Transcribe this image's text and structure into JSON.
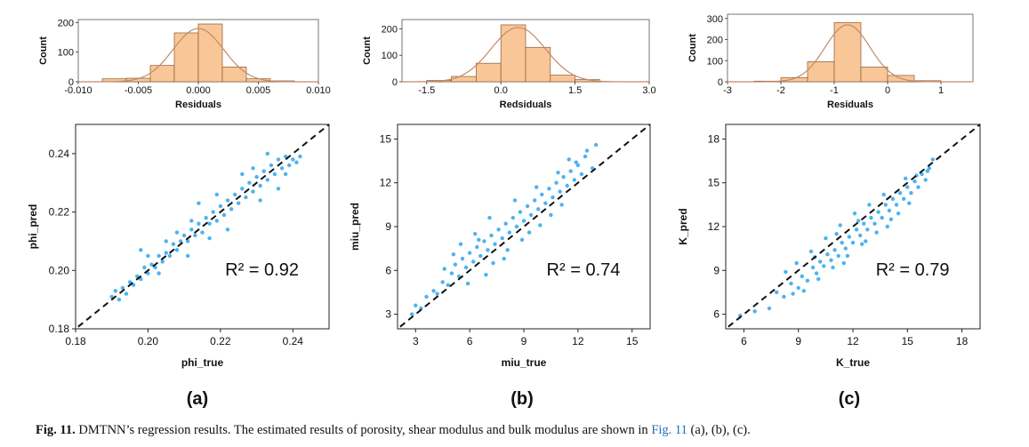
{
  "caption": {
    "label": "Fig. 11.",
    "text_before": "DMTNN’s regression results. The estimated results of porosity, shear modulus and bulk modulus are shown in",
    "link": "Fig. 11",
    "text_after": "(a), (b), (c)."
  },
  "colors": {
    "bar_fill": "#f9c697",
    "bar_stroke": "#8a5a2e",
    "curve": "#c4896a",
    "point": "#4db2f0",
    "identity": "#111111"
  },
  "chart_data": [
    {
      "panel": "a",
      "panel_label": "(a)",
      "histogram": {
        "type": "bar",
        "xlabel": "Residuals",
        "ylabel": "Count",
        "xlim": [
          -0.01,
          0.01
        ],
        "ylim": [
          0,
          210
        ],
        "xticks": [
          -0.01,
          -0.005,
          0.0,
          0.005,
          0.01
        ],
        "xtick_labels": [
          "-0.010",
          "-0.005",
          "0.000",
          "0.005",
          "0.010"
        ],
        "yticks": [
          0,
          100,
          200
        ],
        "bins": [
          [
            -0.008,
            -0.006,
            10
          ],
          [
            -0.006,
            -0.004,
            12
          ],
          [
            -0.004,
            -0.002,
            55
          ],
          [
            -0.002,
            0.0,
            165
          ],
          [
            0.0,
            0.002,
            195
          ],
          [
            0.002,
            0.004,
            50
          ],
          [
            0.004,
            0.006,
            10
          ],
          [
            0.006,
            0.008,
            3
          ]
        ],
        "normal_fit": {
          "mean": 0.0,
          "sd": 0.0021,
          "peak": 180
        }
      },
      "scatter": {
        "type": "scatter",
        "xlabel": "phi_true",
        "ylabel": "phi_pred",
        "xlim": [
          0.18,
          0.25
        ],
        "ylim": [
          0.18,
          0.25
        ],
        "xticks": [
          0.18,
          0.2,
          0.22,
          0.24
        ],
        "xtick_labels": [
          "0.18",
          "0.20",
          "0.22",
          "0.24"
        ],
        "yticks": [
          0.18,
          0.2,
          0.22,
          0.24
        ],
        "ytick_labels": [
          "0.18",
          "0.20",
          "0.22",
          "0.24"
        ],
        "r2_text": "R² = 0.92",
        "points": [
          [
            0.19,
            0.191
          ],
          [
            0.191,
            0.193
          ],
          [
            0.192,
            0.19
          ],
          [
            0.193,
            0.194
          ],
          [
            0.194,
            0.192
          ],
          [
            0.195,
            0.196
          ],
          [
            0.196,
            0.195
          ],
          [
            0.197,
            0.198
          ],
          [
            0.198,
            0.197
          ],
          [
            0.199,
            0.201
          ],
          [
            0.2,
            0.199
          ],
          [
            0.201,
            0.202
          ],
          [
            0.202,
            0.201
          ],
          [
            0.203,
            0.205
          ],
          [
            0.204,
            0.203
          ],
          [
            0.205,
            0.206
          ],
          [
            0.206,
            0.205
          ],
          [
            0.207,
            0.209
          ],
          [
            0.208,
            0.207
          ],
          [
            0.209,
            0.21
          ],
          [
            0.21,
            0.212
          ],
          [
            0.211,
            0.21
          ],
          [
            0.212,
            0.214
          ],
          [
            0.213,
            0.212
          ],
          [
            0.214,
            0.216
          ],
          [
            0.215,
            0.213
          ],
          [
            0.216,
            0.218
          ],
          [
            0.217,
            0.216
          ],
          [
            0.218,
            0.22
          ],
          [
            0.219,
            0.217
          ],
          [
            0.22,
            0.222
          ],
          [
            0.221,
            0.219
          ],
          [
            0.222,
            0.224
          ],
          [
            0.223,
            0.221
          ],
          [
            0.224,
            0.226
          ],
          [
            0.225,
            0.223
          ],
          [
            0.226,
            0.228
          ],
          [
            0.227,
            0.225
          ],
          [
            0.228,
            0.23
          ],
          [
            0.229,
            0.227
          ],
          [
            0.23,
            0.232
          ],
          [
            0.231,
            0.229
          ],
          [
            0.232,
            0.234
          ],
          [
            0.233,
            0.231
          ],
          [
            0.234,
            0.236
          ],
          [
            0.235,
            0.233
          ],
          [
            0.236,
            0.238
          ],
          [
            0.237,
            0.235
          ],
          [
            0.238,
            0.239
          ],
          [
            0.239,
            0.236
          ],
          [
            0.24,
            0.238
          ],
          [
            0.241,
            0.237
          ],
          [
            0.242,
            0.239
          ],
          [
            0.236,
            0.228
          ],
          [
            0.233,
            0.24
          ],
          [
            0.229,
            0.235
          ],
          [
            0.214,
            0.223
          ],
          [
            0.205,
            0.21
          ],
          [
            0.198,
            0.207
          ],
          [
            0.222,
            0.214
          ],
          [
            0.226,
            0.233
          ],
          [
            0.219,
            0.226
          ],
          [
            0.211,
            0.205
          ],
          [
            0.208,
            0.213
          ],
          [
            0.203,
            0.199
          ],
          [
            0.2,
            0.205
          ],
          [
            0.212,
            0.217
          ],
          [
            0.217,
            0.211
          ],
          [
            0.231,
            0.224
          ],
          [
            0.238,
            0.233
          ]
        ]
      }
    },
    {
      "panel": "b",
      "panel_label": "(b)",
      "histogram": {
        "type": "bar",
        "xlabel": "Redsiduals",
        "ylabel": "Count",
        "xlim": [
          -2.0,
          3.0
        ],
        "ylim": [
          0,
          235
        ],
        "xticks": [
          -1.5,
          0.0,
          1.5,
          3.0
        ],
        "xtick_labels": [
          "-1.5",
          "0.0",
          "1.5",
          "3.0"
        ],
        "yticks": [
          0,
          100,
          200
        ],
        "bins": [
          [
            -1.5,
            -1.0,
            5
          ],
          [
            -1.0,
            -0.5,
            20
          ],
          [
            -0.5,
            0.0,
            70
          ],
          [
            0.0,
            0.5,
            215
          ],
          [
            0.5,
            1.0,
            130
          ],
          [
            1.0,
            1.5,
            25
          ],
          [
            1.5,
            2.0,
            8
          ]
        ],
        "normal_fit": {
          "mean": 0.35,
          "sd": 0.55,
          "peak": 205
        }
      },
      "scatter": {
        "type": "scatter",
        "xlabel": "miu_true",
        "ylabel": "miu_pred",
        "xlim": [
          2,
          16
        ],
        "ylim": [
          2,
          16
        ],
        "xticks": [
          3,
          6,
          9,
          12,
          15
        ],
        "xtick_labels": [
          "3",
          "6",
          "9",
          "12",
          "15"
        ],
        "yticks": [
          3,
          6,
          9,
          12,
          15
        ],
        "ytick_labels": [
          "3",
          "6",
          "9",
          "12",
          "15"
        ],
        "r2_text": "R² = 0.74",
        "points": [
          [
            2.8,
            3.0
          ],
          [
            3.0,
            3.6
          ],
          [
            3.3,
            3.4
          ],
          [
            3.6,
            4.2
          ],
          [
            4.0,
            4.6
          ],
          [
            4.2,
            4.4
          ],
          [
            4.5,
            5.2
          ],
          [
            4.8,
            5.0
          ],
          [
            5.0,
            5.8
          ],
          [
            5.2,
            6.4
          ],
          [
            5.4,
            5.6
          ],
          [
            5.6,
            6.8
          ],
          [
            5.8,
            6.2
          ],
          [
            6.0,
            7.2
          ],
          [
            6.2,
            6.6
          ],
          [
            6.4,
            7.6
          ],
          [
            6.6,
            7.0
          ],
          [
            6.8,
            8.0
          ],
          [
            7.0,
            7.4
          ],
          [
            7.2,
            8.4
          ],
          [
            7.4,
            7.8
          ],
          [
            7.6,
            8.8
          ],
          [
            7.8,
            8.2
          ],
          [
            8.0,
            9.2
          ],
          [
            8.2,
            8.6
          ],
          [
            8.4,
            9.6
          ],
          [
            8.6,
            9.0
          ],
          [
            8.8,
            10.0
          ],
          [
            9.0,
            9.4
          ],
          [
            9.2,
            10.4
          ],
          [
            9.4,
            9.8
          ],
          [
            9.6,
            10.8
          ],
          [
            9.8,
            10.2
          ],
          [
            10.0,
            11.2
          ],
          [
            10.2,
            10.6
          ],
          [
            10.4,
            11.6
          ],
          [
            10.6,
            11.0
          ],
          [
            10.8,
            12.0
          ],
          [
            11.0,
            11.4
          ],
          [
            11.2,
            12.4
          ],
          [
            11.4,
            11.8
          ],
          [
            11.6,
            12.8
          ],
          [
            11.8,
            12.2
          ],
          [
            12.0,
            13.2
          ],
          [
            12.2,
            12.6
          ],
          [
            12.5,
            14.2
          ],
          [
            12.8,
            13.0
          ],
          [
            13.0,
            14.6
          ],
          [
            12.4,
            13.8
          ],
          [
            11.9,
            13.4
          ],
          [
            5.5,
            7.8
          ],
          [
            6.3,
            8.5
          ],
          [
            7.1,
            9.6
          ],
          [
            7.9,
            6.8
          ],
          [
            8.5,
            10.8
          ],
          [
            9.3,
            8.6
          ],
          [
            6.9,
            5.7
          ],
          [
            5.9,
            5.1
          ],
          [
            10.5,
            9.8
          ],
          [
            9.7,
            11.7
          ],
          [
            8.1,
            7.4
          ],
          [
            7.3,
            6.5
          ],
          [
            6.5,
            8.1
          ],
          [
            10.9,
            12.7
          ],
          [
            11.5,
            13.6
          ],
          [
            4.6,
            6.1
          ],
          [
            5.1,
            7.1
          ],
          [
            8.9,
            8.1
          ],
          [
            9.9,
            9.1
          ],
          [
            11.1,
            10.5
          ]
        ]
      }
    },
    {
      "panel": "c",
      "panel_label": "(c)",
      "histogram": {
        "type": "bar",
        "xlabel": "Residuals",
        "ylabel": "Count",
        "xlim": [
          -3.0,
          1.6
        ],
        "ylim": [
          0,
          320
        ],
        "xticks": [
          -3,
          -2,
          -1,
          0,
          1
        ],
        "xtick_labels": [
          "-3",
          "-2",
          "-1",
          "0",
          "1"
        ],
        "yticks": [
          0,
          100,
          200,
          300
        ],
        "bins": [
          [
            -2.5,
            -2.0,
            3
          ],
          [
            -2.0,
            -1.5,
            20
          ],
          [
            -1.5,
            -1.0,
            95
          ],
          [
            -1.0,
            -0.5,
            280
          ],
          [
            -0.5,
            0.0,
            70
          ],
          [
            0.0,
            0.5,
            30
          ],
          [
            0.5,
            1.0,
            5
          ]
        ],
        "normal_fit": {
          "mean": -0.75,
          "sd": 0.42,
          "peak": 270
        }
      },
      "scatter": {
        "type": "scatter",
        "xlabel": "K_true",
        "ylabel": "K_pred",
        "xlim": [
          5,
          19
        ],
        "ylim": [
          5,
          19
        ],
        "xticks": [
          6,
          9,
          12,
          15,
          18
        ],
        "xtick_labels": [
          "6",
          "9",
          "12",
          "15",
          "18"
        ],
        "yticks": [
          6,
          9,
          12,
          15,
          18
        ],
        "ytick_labels": [
          "6",
          "9",
          "12",
          "15",
          "18"
        ],
        "r2_text": "R² = 0.79",
        "points": [
          [
            5.8,
            5.9
          ],
          [
            6.6,
            6.2
          ],
          [
            7.4,
            6.4
          ],
          [
            7.8,
            7.5
          ],
          [
            8.2,
            7.2
          ],
          [
            8.6,
            8.1
          ],
          [
            9.0,
            7.8
          ],
          [
            9.2,
            8.6
          ],
          [
            9.5,
            8.3
          ],
          [
            9.8,
            9.2
          ],
          [
            10.0,
            8.8
          ],
          [
            10.2,
            9.6
          ],
          [
            10.4,
            9.3
          ],
          [
            10.6,
            10.1
          ],
          [
            10.8,
            9.7
          ],
          [
            11.0,
            10.4
          ],
          [
            11.2,
            10.0
          ],
          [
            11.4,
            10.9
          ],
          [
            11.6,
            10.5
          ],
          [
            11.8,
            11.3
          ],
          [
            12.0,
            10.9
          ],
          [
            12.2,
            11.8
          ],
          [
            12.4,
            11.4
          ],
          [
            12.6,
            12.2
          ],
          [
            12.8,
            11.8
          ],
          [
            13.0,
            12.6
          ],
          [
            13.2,
            12.2
          ],
          [
            13.4,
            13.0
          ],
          [
            13.6,
            12.6
          ],
          [
            13.8,
            13.5
          ],
          [
            14.0,
            13.1
          ],
          [
            14.2,
            13.9
          ],
          [
            14.4,
            13.5
          ],
          [
            14.6,
            14.3
          ],
          [
            14.8,
            13.9
          ],
          [
            15.0,
            14.7
          ],
          [
            15.2,
            14.3
          ],
          [
            15.4,
            15.1
          ],
          [
            15.6,
            14.7
          ],
          [
            15.8,
            15.6
          ],
          [
            16.0,
            15.2
          ],
          [
            16.2,
            16.0
          ],
          [
            16.4,
            16.6
          ],
          [
            16.1,
            15.8
          ],
          [
            15.5,
            15.5
          ],
          [
            14.9,
            15.3
          ],
          [
            13.7,
            14.2
          ],
          [
            12.9,
            13.5
          ],
          [
            12.1,
            12.9
          ],
          [
            11.3,
            12.1
          ],
          [
            10.5,
            11.2
          ],
          [
            9.7,
            10.3
          ],
          [
            8.9,
            9.5
          ],
          [
            8.3,
            8.9
          ],
          [
            10.9,
            9.2
          ],
          [
            11.7,
            10.0
          ],
          [
            12.5,
            10.8
          ],
          [
            13.3,
            11.6
          ],
          [
            14.1,
            12.5
          ],
          [
            9.3,
            7.6
          ],
          [
            10.1,
            8.4
          ],
          [
            11.5,
            9.5
          ],
          [
            12.7,
            11.0
          ],
          [
            13.9,
            12.0
          ],
          [
            14.5,
            12.9
          ],
          [
            15.1,
            13.6
          ],
          [
            8.7,
            7.4
          ],
          [
            9.9,
            9.9
          ],
          [
            11.1,
            11.5
          ],
          [
            12.3,
            12.4
          ]
        ]
      }
    }
  ]
}
